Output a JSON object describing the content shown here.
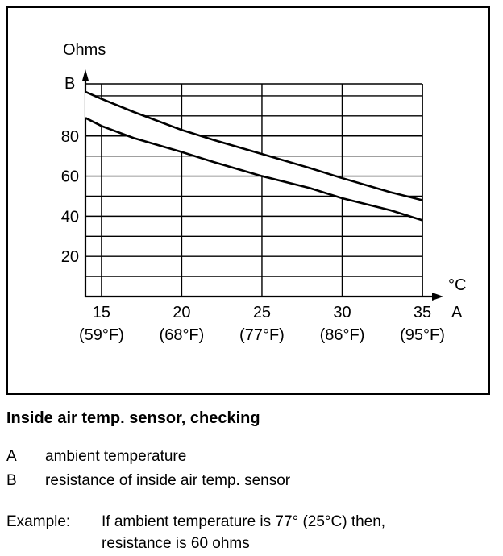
{
  "chart_data": {
    "type": "line",
    "y_unit_label": "Ohms",
    "y_axis_letter": "B",
    "x_unit_label": "°C",
    "x_axis_letter": "A",
    "xlim": [
      14,
      35
    ],
    "ylim": [
      0,
      106
    ],
    "x_ticks": [
      {
        "c": "15",
        "f": "(59°F)"
      },
      {
        "c": "20",
        "f": "(68°F)"
      },
      {
        "c": "25",
        "f": "(77°F)"
      },
      {
        "c": "30",
        "f": "(86°F)"
      },
      {
        "c": "35",
        "f": "(95°F)"
      }
    ],
    "y_ticks": [
      "20",
      "40",
      "60",
      "80"
    ],
    "series": [
      {
        "x": [
          14.0,
          15,
          17,
          20,
          22,
          25,
          28,
          30,
          33,
          35
        ],
        "y": [
          102,
          98.5,
          92,
          83,
          78,
          71,
          64,
          59,
          52,
          48
        ]
      },
      {
        "x": [
          14.0,
          15,
          17,
          20,
          22,
          25,
          28,
          30,
          33,
          35
        ],
        "y": [
          89,
          85,
          79,
          72,
          67,
          60,
          54,
          49,
          43,
          38
        ]
      }
    ]
  },
  "caption": "Inside air temp. sensor, checking",
  "legend": [
    {
      "key": "A",
      "text": "ambient temperature"
    },
    {
      "key": "B",
      "text": "resistance of inside air temp. sensor"
    }
  ],
  "example": {
    "label": "Example:",
    "line1": "If ambient temperature is 77° (25°C) then,",
    "line2": "resistance is 60 ohms"
  }
}
